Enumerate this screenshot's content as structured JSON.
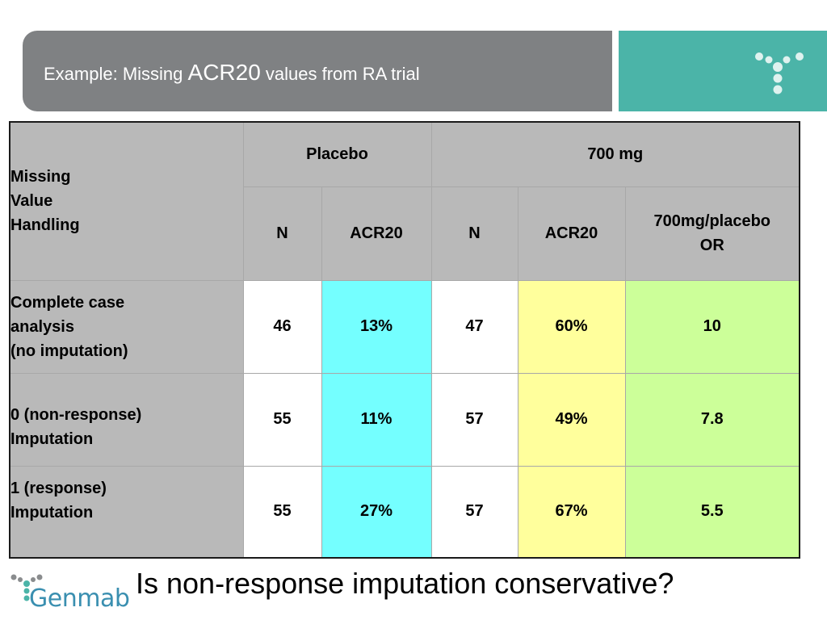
{
  "header": {
    "title_prefix": "Example: Missing ",
    "title_emph": "ACR20",
    "title_suffix": " values from RA trial",
    "colors": {
      "title_bar": "#7f8183",
      "logo_bar": "#4bb4a8",
      "logo_mark": "#dff2ef"
    },
    "logo_icon": "genmab-y-mark"
  },
  "table": {
    "row_header_label": [
      "Missing",
      "Value",
      "Handling"
    ],
    "groups": [
      "Placebo",
      "700 mg"
    ],
    "columns": [
      "N",
      "ACR20",
      "N",
      "ACR20"
    ],
    "or_header": [
      "700mg/placebo",
      "OR"
    ],
    "rows": [
      {
        "label": [
          "Complete case",
          "analysis",
          "(no imputation)"
        ],
        "placebo_n": "46",
        "placebo_acr20": "13%",
        "mg700_n": "47",
        "mg700_acr20": "60%",
        "or": "10"
      },
      {
        "label": [
          "0 (non-response)",
          "Imputation"
        ],
        "placebo_n": "55",
        "placebo_acr20": "11%",
        "mg700_n": "57",
        "mg700_acr20": "49%",
        "or": "7.8"
      },
      {
        "label": [
          "1 (response)",
          "Imputation"
        ],
        "placebo_n": "55",
        "placebo_acr20": "27%",
        "mg700_n": "57",
        "mg700_acr20": "67%",
        "or": "5.5"
      }
    ],
    "colors": {
      "header": "#b9b9b9",
      "placebo_acr20": "#74ffff",
      "mg700_acr20": "#ffff9c",
      "or": "#ccff99"
    }
  },
  "footer": {
    "brand": "Genmab",
    "question": "Is non-response imputation conservative?",
    "logo_icon": "genmab-logo"
  }
}
